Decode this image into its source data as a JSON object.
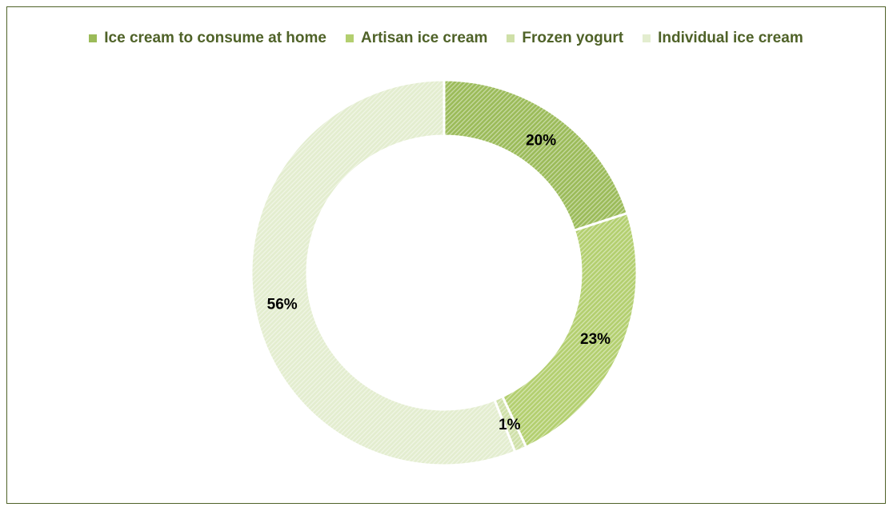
{
  "chart_data": {
    "type": "pie",
    "variant": "doughnut",
    "title": "",
    "categories": [
      "Ice cream to consume at home",
      "Artisan ice cream",
      "Frozen yogurt",
      "Individual ice cream"
    ],
    "values": [
      20,
      23,
      1,
      56
    ],
    "unit": "%",
    "data_labels": [
      "20%",
      "23%",
      "1%",
      "56%"
    ],
    "colors": [
      "#9bbb59",
      "#b3cf6f",
      "#cfe0a8",
      "#e3edcf"
    ],
    "legend_position": "top",
    "border_color": "#4f6228"
  }
}
